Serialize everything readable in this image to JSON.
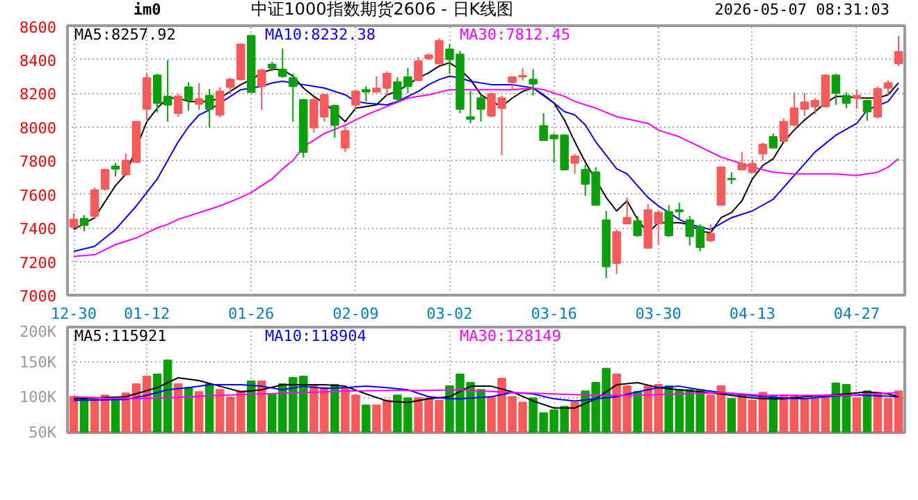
{
  "chart_data": [
    {
      "type": "candlestick",
      "title": "中证1000指数期货2606 - 日K线图",
      "annotations": [
        "im0",
        "2026-05-07 08:31:03"
      ],
      "categories": [
        "12-30",
        null,
        null,
        null,
        null,
        null,
        null,
        "01-12",
        null,
        null,
        null,
        null,
        null,
        null,
        null,
        null,
        null,
        "01-26",
        null,
        null,
        null,
        null,
        null,
        null,
        null,
        null,
        null,
        "02-09",
        null,
        null,
        null,
        null,
        null,
        null,
        null,
        null,
        "03-02",
        null,
        null,
        null,
        null,
        null,
        null,
        null,
        null,
        null,
        "03-16",
        null,
        null,
        null,
        null,
        null,
        null,
        null,
        null,
        null,
        "03-30",
        null,
        null,
        null,
        null,
        null,
        null,
        null,
        null,
        "04-13",
        null,
        null,
        null,
        null,
        null,
        null,
        null,
        null,
        null,
        "04-27",
        null,
        null,
        null,
        null
      ],
      "ohlc": [
        [
          7405,
          7485,
          7395,
          7450
        ],
        [
          7455,
          7475,
          7380,
          7415
        ],
        [
          7470,
          7640,
          7450,
          7624
        ],
        [
          7630,
          7750,
          7620,
          7745
        ],
        [
          7765,
          7785,
          7705,
          7750
        ],
        [
          7715,
          7840,
          7710,
          7800
        ],
        [
          7790,
          8030,
          7785,
          8030
        ],
        [
          8105,
          8320,
          8030,
          8290
        ],
        [
          8305,
          8315,
          8085,
          8140
        ],
        [
          8180,
          8395,
          8030,
          8130
        ],
        [
          8080,
          8195,
          8060,
          8180
        ],
        [
          8235,
          8265,
          8095,
          8160
        ],
        [
          8135,
          8260,
          8100,
          8165
        ],
        [
          8185,
          8225,
          7995,
          8105
        ],
        [
          8070,
          8235,
          8055,
          8210
        ],
        [
          8235,
          8290,
          8195,
          8280
        ],
        [
          8280,
          8490,
          8275,
          8490
        ],
        [
          8540,
          8545,
          8205,
          8205
        ],
        [
          8240,
          8345,
          8100,
          8335
        ],
        [
          8370,
          8385,
          8330,
          8350
        ],
        [
          8340,
          8465,
          8290,
          8300
        ],
        [
          8290,
          8315,
          8030,
          8240
        ],
        [
          8160,
          8165,
          7815,
          7850
        ],
        [
          7995,
          8175,
          7965,
          8160
        ],
        [
          8060,
          8195,
          8030,
          8190
        ],
        [
          8125,
          8130,
          7935,
          8010
        ],
        [
          7875,
          8010,
          7850,
          7975
        ],
        [
          8130,
          8220,
          8100,
          8210
        ],
        [
          8220,
          8240,
          8150,
          8208
        ],
        [
          8207,
          8300,
          8205,
          8228
        ],
        [
          8230,
          8330,
          8185,
          8315
        ],
        [
          8265,
          8295,
          8140,
          8165
        ],
        [
          8295,
          8348,
          8200,
          8240
        ],
        [
          8275,
          8415,
          8270,
          8390
        ],
        [
          8405,
          8435,
          8395,
          8425
        ],
        [
          8375,
          8525,
          8370,
          8510
        ],
        [
          8460,
          8490,
          8315,
          8400
        ],
        [
          8430,
          8450,
          8080,
          8105
        ],
        [
          8058,
          8212,
          8020,
          8045
        ],
        [
          8170,
          8195,
          8030,
          8105
        ],
        [
          8065,
          8205,
          8055,
          8195
        ],
        [
          8110,
          8185,
          7830,
          8170
        ],
        [
          8265,
          8300,
          8220,
          8295
        ],
        [
          8297,
          8348,
          8275,
          8303
        ],
        [
          8280,
          8342,
          8185,
          8255
        ],
        [
          8005,
          8080,
          7915,
          7920
        ],
        [
          7950,
          7960,
          7785,
          7930
        ],
        [
          7950,
          7955,
          7740,
          7745
        ],
        [
          7785,
          7840,
          7720,
          7825
        ],
        [
          7745,
          7775,
          7590,
          7660
        ],
        [
          7730,
          7760,
          7535,
          7535
        ],
        [
          7445,
          7500,
          7100,
          7170
        ],
        [
          7190,
          7390,
          7125,
          7375
        ],
        [
          7425,
          7580,
          7420,
          7460
        ],
        [
          7440,
          7470,
          7345,
          7355
        ],
        [
          7280,
          7540,
          7275,
          7505
        ],
        [
          7425,
          7505,
          7300,
          7490
        ],
        [
          7495,
          7535,
          7345,
          7355
        ],
        [
          7505,
          7550,
          7453,
          7497
        ],
        [
          7445,
          7470,
          7295,
          7350
        ],
        [
          7405,
          7420,
          7260,
          7285
        ],
        [
          7325,
          7420,
          7315,
          7365
        ],
        [
          7535,
          7760,
          7535,
          7760
        ],
        [
          7692,
          7730,
          7660,
          7688
        ],
        [
          7745,
          7850,
          7745,
          7780
        ],
        [
          7730,
          7805,
          7725,
          7780
        ],
        [
          7840,
          7905,
          7800,
          7895
        ],
        [
          7940,
          7960,
          7875,
          7875
        ],
        [
          7915,
          8050,
          7910,
          8030
        ],
        [
          8010,
          8205,
          8005,
          8110
        ],
        [
          8105,
          8200,
          8065,
          8145
        ],
        [
          8120,
          8170,
          8075,
          8155
        ],
        [
          8120,
          8310,
          8115,
          8305
        ],
        [
          8305,
          8315,
          8130,
          8200
        ],
        [
          8185,
          8205,
          8110,
          8140
        ],
        [
          8170,
          8220,
          8105,
          8185
        ],
        [
          8155,
          8160,
          8035,
          8090
        ],
        [
          8060,
          8240,
          8050,
          8225
        ],
        [
          8230,
          8275,
          8190,
          8260
        ],
        [
          8375,
          8540,
          8360,
          8445
        ]
      ],
      "colors": [
        "#f65a5a",
        "#0aa00a",
        "#f65a5a",
        "#f65a5a",
        "#0aa00a",
        "#f65a5a",
        "#f65a5a",
        "#f65a5a",
        "#0aa00a",
        "#0aa00a",
        "#f65a5a",
        "#0aa00a",
        "#f65a5a",
        "#0aa00a",
        "#f65a5a",
        "#f65a5a",
        "#f65a5a",
        "#0aa00a",
        "#f65a5a",
        "#0aa00a",
        "#0aa00a",
        "#0aa00a",
        "#0aa00a",
        "#f65a5a",
        "#f65a5a",
        "#0aa00a",
        "#f65a5a",
        "#f65a5a",
        "#0aa00a",
        "#f65a5a",
        "#f65a5a",
        "#0aa00a",
        "#0aa00a",
        "#f65a5a",
        "#f65a5a",
        "#f65a5a",
        "#0aa00a",
        "#0aa00a",
        "#0aa00a",
        "#0aa00a",
        "#f65a5a",
        "#f65a5a",
        "#f65a5a",
        "#f65a5a",
        "#0aa00a",
        "#0aa00a",
        "#0aa00a",
        "#0aa00a",
        "#f65a5a",
        "#0aa00a",
        "#0aa00a",
        "#0aa00a",
        "#f65a5a",
        "#f65a5a",
        "#0aa00a",
        "#f65a5a",
        "#f65a5a",
        "#0aa00a",
        "#0aa00a",
        "#0aa00a",
        "#0aa00a",
        "#f65a5a",
        "#f65a5a",
        "#0aa00a",
        "#f65a5a",
        "#f65a5a",
        "#f65a5a",
        "#0aa00a",
        "#f65a5a",
        "#f65a5a",
        "#f65a5a",
        "#f65a5a",
        "#f65a5a",
        "#0aa00a",
        "#0aa00a",
        "#f65a5a",
        "#0aa00a",
        "#f65a5a",
        "#f65a5a",
        "#f65a5a"
      ],
      "series": [
        {
          "type": "line",
          "name": "MA5:8257.92",
          "color": "#000000",
          "values": [
            7390,
            null,
            7460,
            null,
            7650,
            7720,
            null,
            8030,
            8110,
            8170,
            8170,
            8150,
            8150,
            8150,
            8170,
            8210,
            8250,
            8280,
            8320,
            8340,
            8340,
            8300,
            8230,
            8180,
            8140,
            8090,
            8030,
            8110,
            8120,
            8130,
            8190,
            8210,
            8250,
            8290,
            8320,
            8360,
            8380,
            8340,
            8280,
            8190,
            8150,
            8120,
            8170,
            8210,
            8230,
            null,
            8140,
            8040,
            7910,
            7790,
            null,
            7580,
            7500,
            7560,
            7450,
            7370,
            7430,
            7430,
            7430,
            7420,
            7380,
            7370,
            7460,
            7490,
            7560,
            7690,
            7770,
            7810,
            7910,
            7980,
            8040,
            8090,
            8140,
            8180,
            8180,
            8170,
            8170,
            8170,
            8190,
            8260
          ]
        },
        {
          "type": "line",
          "name": "MA10:8232.38",
          "color": "#0000ff",
          "values": [
            7260,
            null,
            7290,
            null,
            7390,
            null,
            7530,
            7610,
            7690,
            7800,
            7910,
            8000,
            8070,
            8100,
            8140,
            8180,
            8220,
            8230,
            8240,
            8260,
            8270,
            8260,
            8250,
            8240,
            8230,
            null,
            8190,
            8150,
            8140,
            null,
            8130,
            8150,
            8180,
            8210,
            8250,
            8280,
            8300,
            8290,
            8270,
            null,
            8250,
            null,
            8250,
            null,
            8230,
            8190,
            8140,
            8090,
            8070,
            8010,
            7910,
            7830,
            7750,
            7720,
            null,
            7580,
            7530,
            7490,
            7450,
            7420,
            null,
            7390,
            null,
            7460,
            null,
            7500,
            null,
            7570,
            null,
            7710,
            null,
            7850,
            null,
            7950,
            null,
            8020,
            8100,
            null,
            8150,
            8230
          ]
        },
        {
          "type": "line",
          "name": "MA30:7812.45",
          "color": "#ff00ff",
          "values": [
            7230,
            null,
            7240,
            null,
            7300,
            null,
            7340,
            7370,
            7400,
            7420,
            7450,
            null,
            7490,
            null,
            7530,
            null,
            7580,
            7610,
            7650,
            7690,
            7750,
            7800,
            7880,
            7920,
            7960,
            null,
            8010,
            null,
            8070,
            null,
            8120,
            null,
            8170,
            null,
            8190,
            null,
            8220,
            null,
            8220,
            null,
            8220,
            null,
            8220,
            null,
            8230,
            8220,
            8200,
            8180,
            8150,
            null,
            8110,
            null,
            8060,
            null,
            null,
            8020,
            7980,
            null,
            7940,
            null,
            7880,
            null,
            7820,
            null,
            null,
            7760,
            null,
            7730,
            null,
            7720,
            null,
            null,
            null,
            7720,
            null,
            7710,
            null,
            7730,
            7760,
            7810
          ]
        }
      ],
      "ylim": [
        7000,
        8600
      ],
      "yticks": [
        7000,
        7200,
        7400,
        7600,
        7800,
        8000,
        8200,
        8400,
        8600
      ],
      "grid": true,
      "legend": "top left"
    },
    {
      "type": "bar",
      "categories": [
        null,
        null,
        null,
        null,
        null,
        null,
        null,
        null,
        null,
        null,
        null,
        null,
        null,
        null,
        null,
        null,
        null,
        null,
        null,
        null,
        null,
        null,
        null,
        null,
        null,
        null,
        null,
        null,
        null,
        null,
        null,
        null,
        null,
        null,
        null,
        null,
        null,
        null,
        null,
        null,
        null,
        null,
        null,
        null,
        null,
        null,
        null,
        null,
        null,
        null,
        null,
        null,
        null,
        null,
        null,
        null,
        null,
        null,
        null,
        null,
        null,
        null,
        null,
        null,
        null,
        null,
        null,
        null,
        null,
        null,
        null,
        null,
        null,
        null,
        null,
        null,
        null,
        null,
        null,
        null
      ],
      "values": [
        101,
        98,
        98,
        103,
        98,
        106,
        119,
        130,
        133,
        153,
        119,
        114,
        108,
        119,
        111,
        100,
        109,
        123,
        123,
        105,
        119,
        128,
        130,
        116,
        114,
        118,
        114,
        103,
        89,
        89,
        96,
        103,
        99,
        99,
        99,
        96,
        116,
        133,
        121,
        111,
        101,
        127,
        101,
        93,
        99,
        78,
        82,
        87,
        93,
        109,
        121,
        141,
        133,
        116,
        108,
        116,
        118,
        116,
        111,
        111,
        111,
        103,
        116,
        98,
        103,
        96,
        107,
        103,
        103,
        103,
        98,
        98,
        103,
        120,
        118,
        99,
        109,
        107,
        98,
        109
      ],
      "colors": [
        "#f65a5a",
        "#0aa00a",
        "#f65a5a",
        "#f65a5a",
        "#0aa00a",
        "#f65a5a",
        "#f65a5a",
        "#f65a5a",
        "#0aa00a",
        "#0aa00a",
        "#f65a5a",
        "#0aa00a",
        "#f65a5a",
        "#0aa00a",
        "#f65a5a",
        "#f65a5a",
        "#f65a5a",
        "#0aa00a",
        "#f65a5a",
        "#0aa00a",
        "#0aa00a",
        "#0aa00a",
        "#0aa00a",
        "#f65a5a",
        "#f65a5a",
        "#0aa00a",
        "#f65a5a",
        "#f65a5a",
        "#0aa00a",
        "#f65a5a",
        "#f65a5a",
        "#0aa00a",
        "#0aa00a",
        "#f65a5a",
        "#f65a5a",
        "#f65a5a",
        "#0aa00a",
        "#0aa00a",
        "#0aa00a",
        "#0aa00a",
        "#f65a5a",
        "#f65a5a",
        "#f65a5a",
        "#f65a5a",
        "#0aa00a",
        "#0aa00a",
        "#0aa00a",
        "#0aa00a",
        "#f65a5a",
        "#0aa00a",
        "#0aa00a",
        "#0aa00a",
        "#f65a5a",
        "#f65a5a",
        "#0aa00a",
        "#f65a5a",
        "#f65a5a",
        "#0aa00a",
        "#0aa00a",
        "#0aa00a",
        "#0aa00a",
        "#f65a5a",
        "#f65a5a",
        "#0aa00a",
        "#f65a5a",
        "#f65a5a",
        "#f65a5a",
        "#0aa00a",
        "#f65a5a",
        "#f65a5a",
        "#f65a5a",
        "#f65a5a",
        "#f65a5a",
        "#0aa00a",
        "#0aa00a",
        "#f65a5a",
        "#0aa00a",
        "#f65a5a",
        "#f65a5a",
        "#f65a5a"
      ],
      "series": [
        {
          "type": "line",
          "name": "MA5:115921",
          "color": "#000000",
          "values": [
            98,
            null,
            null,
            null,
            null,
            101,
            null,
            null,
            114,
            null,
            128,
            null,
            124,
            null,
            116,
            null,
            108,
            null,
            111,
            null,
            118,
            null,
            118,
            null,
            118,
            null,
            116,
            null,
            105,
            null,
            95,
            null,
            93,
            null,
            98,
            null,
            101,
            null,
            116,
            null,
            116,
            null,
            108,
            null,
            95,
            null,
            85,
            null,
            85,
            null,
            98,
            null,
            118,
            null,
            121,
            null,
            114,
            null,
            111,
            null,
            108,
            null,
            105,
            null,
            101,
            null,
            98,
            null,
            98,
            null,
            101,
            null,
            103,
            null,
            105,
            null,
            108,
            null,
            105,
            101
          ]
        },
        {
          "type": "line",
          "name": "MA10:118904",
          "color": "#0000ff",
          "values": [
            96,
            null,
            null,
            null,
            null,
            97,
            null,
            103,
            null,
            111,
            null,
            114,
            null,
            118,
            null,
            null,
            118,
            null,
            116,
            null,
            111,
            null,
            116,
            null,
            113,
            null,
            114,
            null,
            116,
            null,
            114,
            null,
            111,
            null,
            101,
            null,
            98,
            98,
            null,
            null,
            101,
            null,
            107,
            null,
            105,
            null,
            98,
            null,
            95,
            null,
            98,
            null,
            101,
            null,
            108,
            null,
            114,
            null,
            116,
            null,
            111,
            null,
            107,
            null,
            null,
            null,
            101,
            null,
            99,
            null,
            98,
            null,
            101,
            null,
            103,
            null,
            103,
            null,
            null,
            101
          ]
        },
        {
          "type": "line",
          "name": "MA30:128149",
          "color": "#ff00ff",
          "values": [
            101,
            null,
            null,
            99,
            null,
            null,
            98,
            null,
            null,
            null,
            100,
            null,
            null,
            null,
            103,
            null,
            null,
            null,
            105,
            null,
            null,
            null,
            107,
            null,
            null,
            null,
            109,
            null,
            null,
            null,
            110,
            null,
            null,
            null,
            110,
            null,
            null,
            111,
            110,
            null,
            null,
            null,
            107,
            null,
            null,
            null,
            105,
            null,
            null,
            null,
            103,
            null,
            null,
            null,
            103,
            null,
            null,
            null,
            105,
            null,
            null,
            null,
            107,
            null,
            null,
            null,
            103,
            null,
            null,
            null,
            103,
            null,
            null,
            null,
            103,
            null,
            null,
            null,
            null,
            107
          ]
        }
      ],
      "ylim": [
        50,
        200
      ],
      "yticks": [
        {
          "value": 50,
          "label": "50K"
        },
        {
          "value": 100,
          "label": "100K"
        },
        {
          "value": 150,
          "label": "150K"
        },
        {
          "value": 200,
          "label": "200K"
        }
      ],
      "grid": true,
      "legend": "top left"
    }
  ]
}
